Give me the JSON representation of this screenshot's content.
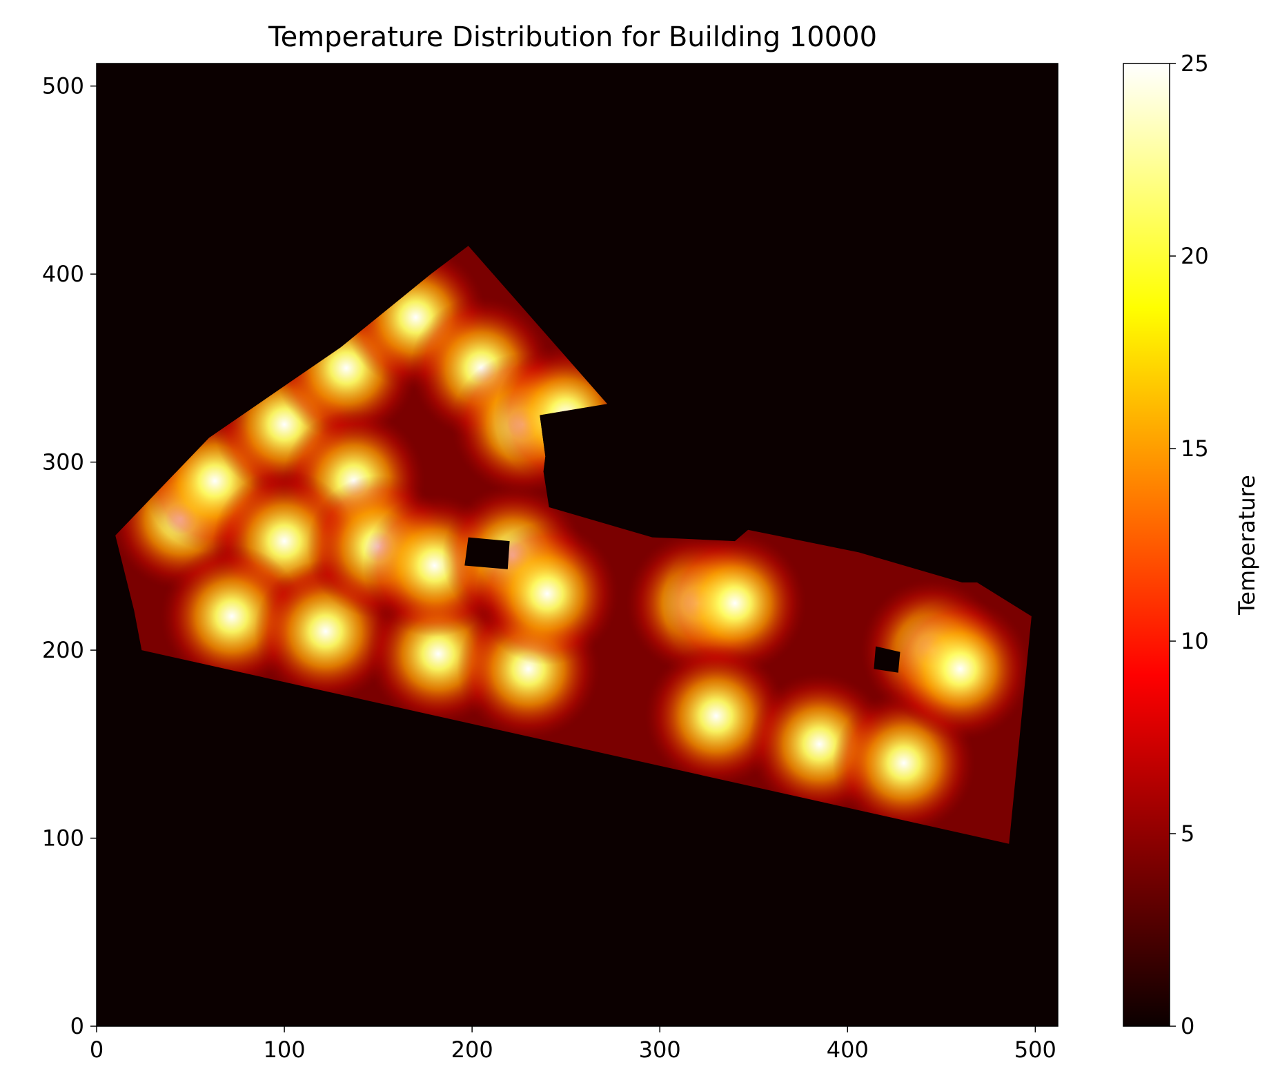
{
  "chart_data": {
    "type": "heatmap",
    "title": "Temperature Distribution for Building 10000",
    "xlabel": "",
    "ylabel": "",
    "xlim": [
      0,
      512
    ],
    "ylim": [
      0,
      512
    ],
    "x_ticks": [
      "0",
      "100",
      "200",
      "300",
      "400",
      "500"
    ],
    "y_ticks": [
      "0",
      "100",
      "200",
      "300",
      "400",
      "500"
    ],
    "grid": false,
    "colormap": "hot",
    "colorbar": {
      "label": "Temperature",
      "range": [
        0,
        25
      ],
      "ticks": [
        "0",
        "5",
        "10",
        "15",
        "20",
        "25"
      ]
    },
    "background_value": 0,
    "wall_value": 4,
    "building_outline": [
      [
        10,
        261
      ],
      [
        20,
        221
      ],
      [
        24,
        200
      ],
      [
        486,
        97
      ],
      [
        498,
        218
      ],
      [
        469,
        236
      ],
      [
        461,
        236
      ],
      [
        406,
        252
      ],
      [
        347,
        264
      ],
      [
        340,
        258
      ],
      [
        296,
        260
      ],
      [
        241,
        276
      ],
      [
        238,
        295
      ],
      [
        239,
        303
      ],
      [
        236,
        325
      ],
      [
        272,
        331
      ],
      [
        198,
        415
      ],
      [
        178,
        400
      ],
      [
        130,
        361
      ],
      [
        60,
        313
      ]
    ],
    "holes": [
      {
        "polygon": [
          [
            198,
            260
          ],
          [
            220,
            258
          ],
          [
            219,
            243
          ],
          [
            196,
            245
          ]
        ],
        "value": 0
      },
      {
        "polygon": [
          [
            415,
            202
          ],
          [
            428,
            199
          ],
          [
            427,
            188
          ],
          [
            414,
            190
          ]
        ],
        "value": 0
      }
    ],
    "heat_sources": [
      {
        "x": 45,
        "y": 270,
        "value": 25
      },
      {
        "x": 63,
        "y": 290,
        "value": 25
      },
      {
        "x": 100,
        "y": 320,
        "value": 25
      },
      {
        "x": 133,
        "y": 350,
        "value": 25
      },
      {
        "x": 170,
        "y": 377,
        "value": 25
      },
      {
        "x": 205,
        "y": 350,
        "value": 25
      },
      {
        "x": 137,
        "y": 290,
        "value": 25
      },
      {
        "x": 100,
        "y": 258,
        "value": 25
      },
      {
        "x": 72,
        "y": 218,
        "value": 25
      },
      {
        "x": 122,
        "y": 210,
        "value": 25
      },
      {
        "x": 182,
        "y": 198,
        "value": 25
      },
      {
        "x": 230,
        "y": 190,
        "value": 25
      },
      {
        "x": 150,
        "y": 255,
        "value": 25
      },
      {
        "x": 180,
        "y": 245,
        "value": 25
      },
      {
        "x": 222,
        "y": 250,
        "value": 25
      },
      {
        "x": 240,
        "y": 230,
        "value": 25
      },
      {
        "x": 227,
        "y": 320,
        "value": 25
      },
      {
        "x": 250,
        "y": 325,
        "value": 25
      },
      {
        "x": 320,
        "y": 225,
        "value": 25
      },
      {
        "x": 340,
        "y": 225,
        "value": 25
      },
      {
        "x": 330,
        "y": 165,
        "value": 25
      },
      {
        "x": 385,
        "y": 150,
        "value": 25
      },
      {
        "x": 430,
        "y": 140,
        "value": 25
      },
      {
        "x": 445,
        "y": 200,
        "value": 25
      },
      {
        "x": 460,
        "y": 190,
        "value": 25
      }
    ]
  }
}
